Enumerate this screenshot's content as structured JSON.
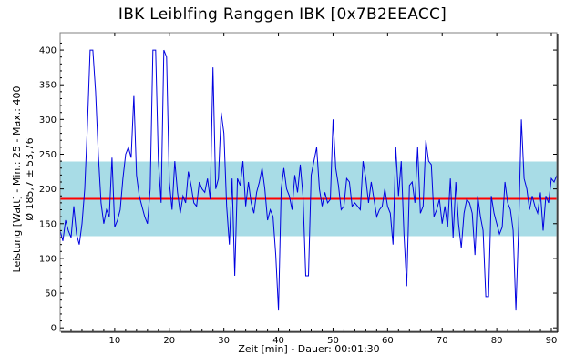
{
  "chart_data": {
    "type": "line",
    "title": "IBK Leiblfing Ranggen IBK [0x7B2EEACC]",
    "xlabel": "Zeit [min] - Dauer: 00:01:30",
    "ylabel_line1": "Leistung [Watt] - Min.: 25 - Max.: 400",
    "ylabel_line2": "Ø 185,7 ± 53,76",
    "xlim": [
      0,
      91
    ],
    "ylim": [
      -5,
      425
    ],
    "x_ticks": [
      10,
      20,
      30,
      40,
      50,
      60,
      70,
      80,
      90
    ],
    "y_ticks": [
      0,
      50,
      100,
      150,
      200,
      250,
      300,
      350,
      400
    ],
    "grid": false,
    "mean": 185.7,
    "std": 53.76,
    "band": [
      132,
      239.5
    ],
    "colors": {
      "series": "#0000e0",
      "mean": "#ff0000",
      "band": "#a8dce6"
    },
    "series": [
      {
        "x": [
          0,
          0.5,
          1,
          1.5,
          2,
          2.5,
          3,
          3.5,
          4,
          4.5,
          5,
          5.5,
          6,
          6.5,
          7,
          7.5,
          8,
          8.5,
          9,
          9.5,
          10,
          10.5,
          11,
          11.5,
          12,
          12.5,
          13,
          13.5,
          14,
          14.5,
          15,
          15.5,
          16,
          16.5,
          17,
          17.5,
          18,
          18.5,
          19,
          19.5,
          20,
          20.5,
          21,
          21.5,
          22,
          22.5,
          23,
          23.5,
          24,
          24.5,
          25,
          25.5,
          26,
          26.5,
          27,
          27.5,
          28,
          28.5,
          29,
          29.5,
          30,
          30.5,
          31,
          31.5,
          32,
          32.5,
          33,
          33.5,
          34,
          34.5,
          35,
          35.5,
          36,
          36.5,
          37,
          37.5,
          38,
          38.5,
          39,
          39.5,
          40,
          40.5,
          41,
          41.5,
          42,
          42.5,
          43,
          43.5,
          44,
          44.5,
          45,
          45.5,
          46,
          46.5,
          47,
          47.5,
          48,
          48.5,
          49,
          49.5,
          50,
          50.5,
          51,
          51.5,
          52,
          52.5,
          53,
          53.5,
          54,
          54.5,
          55,
          55.5,
          56,
          56.5,
          57,
          57.5,
          58,
          58.5,
          59,
          59.5,
          60,
          60.5,
          61,
          61.5,
          62,
          62.5,
          63,
          63.5,
          64,
          64.5,
          65,
          65.5,
          66,
          66.5,
          67,
          67.5,
          68,
          68.5,
          69,
          69.5,
          70,
          70.5,
          71,
          71.5,
          72,
          72.5,
          73,
          73.5,
          74,
          74.5,
          75,
          75.5,
          76,
          76.5,
          77,
          77.5,
          78,
          78.5,
          79,
          79.5,
          80,
          80.5,
          81,
          81.5,
          82,
          82.5,
          83,
          83.5,
          84,
          84.5,
          85,
          85.5,
          86,
          86.5,
          87,
          87.5,
          88,
          88.5,
          89,
          89.5,
          90,
          90.5,
          91
        ],
        "y": [
          140,
          125,
          155,
          140,
          130,
          175,
          135,
          120,
          150,
          200,
          290,
          400,
          400,
          340,
          250,
          180,
          150,
          170,
          160,
          245,
          145,
          155,
          170,
          215,
          250,
          260,
          245,
          335,
          220,
          190,
          175,
          160,
          150,
          200,
          400,
          400,
          240,
          180,
          400,
          390,
          210,
          170,
          240,
          195,
          165,
          190,
          180,
          225,
          205,
          180,
          175,
          210,
          200,
          195,
          215,
          185,
          375,
          200,
          215,
          310,
          280,
          175,
          120,
          215,
          75,
          215,
          205,
          240,
          175,
          210,
          180,
          165,
          195,
          210,
          230,
          200,
          155,
          170,
          160,
          105,
          25,
          200,
          230,
          200,
          190,
          170,
          220,
          195,
          235,
          190,
          75,
          75,
          220,
          240,
          260,
          200,
          175,
          195,
          180,
          185,
          300,
          230,
          205,
          170,
          175,
          215,
          210,
          175,
          180,
          175,
          170,
          240,
          215,
          180,
          210,
          185,
          160,
          170,
          175,
          200,
          175,
          165,
          120,
          260,
          190,
          240,
          135,
          60,
          205,
          210,
          180,
          260,
          165,
          175,
          270,
          240,
          235,
          160,
          170,
          185,
          150,
          175,
          145,
          215,
          130,
          210,
          150,
          115,
          165,
          185,
          180,
          165,
          105,
          190,
          160,
          140,
          45,
          45,
          190,
          165,
          150,
          135,
          145,
          210,
          180,
          170,
          140,
          25,
          145,
          300,
          215,
          200,
          170,
          190,
          175,
          165,
          195,
          140,
          190,
          180,
          215,
          210,
          220
        ]
      }
    ]
  }
}
